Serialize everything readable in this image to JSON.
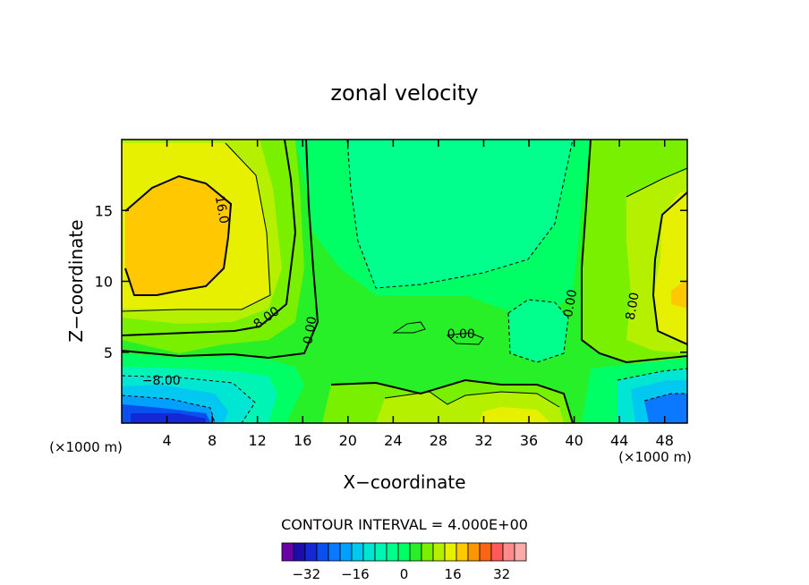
{
  "chart_data": {
    "type": "heatmap",
    "title": "zonal velocity",
    "xlabel": "X−coordinate",
    "ylabel": "Z−coordinate",
    "x_unit_label": "(×1000 m)",
    "x_unit_label_right": "(×1000 m)",
    "xlim": [
      0,
      50
    ],
    "ylim": [
      0,
      20
    ],
    "x_ticks": [
      4,
      8,
      12,
      16,
      20,
      24,
      28,
      32,
      36,
      40,
      44,
      48
    ],
    "y_ticks": [
      5,
      10,
      15
    ],
    "contour_interval_text": "CONTOUR INTERVAL = 4.000E+00",
    "contour_interval": 4.0,
    "contour_labels": [
      {
        "text": "16.0",
        "x": 8.5,
        "y": 15.0
      },
      {
        "text": "8.00",
        "x": 13.0,
        "y": 7.2
      },
      {
        "text": "0.00",
        "x": 17.0,
        "y": 6.5
      },
      {
        "text": "0.00",
        "x": 30.0,
        "y": 6.0
      },
      {
        "text": "0.00",
        "x": 40.0,
        "y": 8.4
      },
      {
        "text": "8.00",
        "x": 45.5,
        "y": 8.2
      },
      {
        "text": "−8.00",
        "x": 3.5,
        "y": 2.7
      }
    ],
    "colorbar": {
      "levels": [
        -40,
        -36,
        -32,
        -28,
        -24,
        -20,
        -16,
        -12,
        -8,
        -4,
        0,
        4,
        8,
        12,
        16,
        20,
        24,
        28,
        32,
        36,
        40
      ],
      "colors": [
        "#6a00a8",
        "#1a0dab",
        "#1428d6",
        "#0a50f0",
        "#0a78ff",
        "#00a0ff",
        "#00c8f0",
        "#00e6d2",
        "#00f5b4",
        "#00ff8c",
        "#00ff64",
        "#28f028",
        "#78f000",
        "#b4f000",
        "#e6f000",
        "#ffc800",
        "#ff9600",
        "#ff6414",
        "#ff5a5a",
        "#ff8c8c",
        "#ffaaaa"
      ],
      "tick_labels": [
        "−32",
        "−16",
        "0",
        "16",
        "32"
      ],
      "tick_values": [
        -32,
        -16,
        0,
        16,
        32
      ]
    }
  }
}
